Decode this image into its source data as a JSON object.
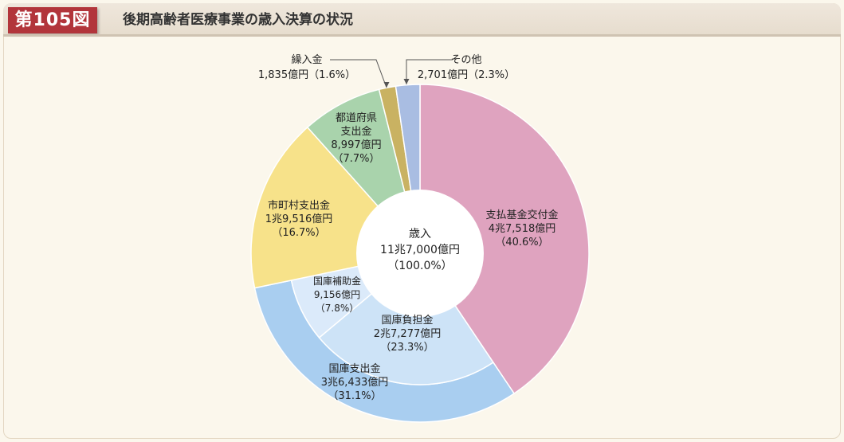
{
  "header": {
    "figure_number": "第105図",
    "title": "後期高齢者医療事業の歳入決算の状況"
  },
  "colors": {
    "badge": "#b2353b",
    "shien": "#dfa3bf",
    "kokko_shishutsu": "#a9cef0",
    "kokko_futan": "#cde3f7",
    "kokko_hojo": "#dbeafa",
    "shichoson": "#f7e28a",
    "todofuken": "#a9d3ac",
    "kurikomi": "#c9b262",
    "sonota": "#a9bde2"
  },
  "chart_data": {
    "type": "pie",
    "title": "後期高齢者医療事業の歳入決算の状況",
    "center_label": [
      "歳入",
      "11兆7,000億円",
      "（100.0%）"
    ],
    "slices": [
      {
        "key": "shien",
        "name": "支払基金交付金",
        "value_label": "4兆7,518億円",
        "pct_label": "（40.6%）",
        "share": 40.6
      },
      {
        "key": "kokko_shishutsu",
        "name": "国庫支出金",
        "value_label": "3兆6,433億円",
        "pct_label": "（31.1%）",
        "share": 31.1,
        "breakdown": [
          {
            "key": "kokko_futan",
            "name": "国庫負担金",
            "value_label": "2兆7,277億円",
            "pct_label": "（23.3%）",
            "share": 23.3
          },
          {
            "key": "kokko_hojo",
            "name": "国庫補助金",
            "value_label": "9,156億円",
            "pct_label": "（7.8%）",
            "share": 7.8
          }
        ]
      },
      {
        "key": "shichoson",
        "name": "市町村支出金",
        "value_label": "1兆9,516億円",
        "pct_label": "（16.7%）",
        "share": 16.7
      },
      {
        "key": "todofuken",
        "name": "都道府県支出金",
        "name_lines": [
          "都道府県",
          "支出金"
        ],
        "value_label": "8,997億円",
        "pct_label": "（7.7%）",
        "share": 7.7
      },
      {
        "key": "kurikomi",
        "name": "繰入金",
        "value_label": "1,835億円",
        "pct_label": "（1.6%）",
        "share": 1.6
      },
      {
        "key": "sonota",
        "name": "その他",
        "value_label": "2,701億円",
        "pct_label": "（2.3%）",
        "share": 2.3
      }
    ]
  }
}
